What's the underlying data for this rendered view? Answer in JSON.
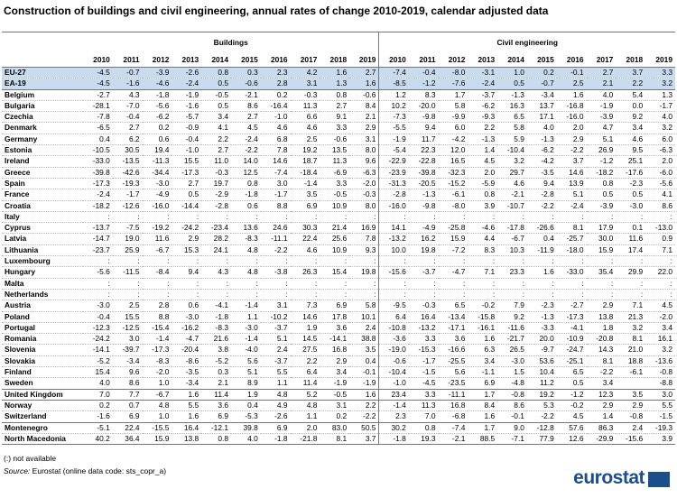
{
  "header": {
    "title": "Construction of buildings and civil engineering, annual rates of change 2010-2019, calendar adjusted data"
  },
  "table": {
    "groups_header": [
      "Buildings",
      "Civil engineering"
    ],
    "years": [
      "2010",
      "2011",
      "2012",
      "2013",
      "2014",
      "2015",
      "2016",
      "2017",
      "2018",
      "2019"
    ],
    "groups": [
      {
        "rows": [
          {
            "country": "EU-27",
            "values": [
              "-4.5",
              "-0.7",
              "-3.9",
              "-2.6",
              "0.8",
              "0.3",
              "2.3",
              "4.2",
              "1.6",
              "2.7",
              "-7.4",
              "-0.4",
              "-8.0",
              "-3.1",
              "1.0",
              "0.2",
              "-0.1",
              "2.7",
              "3.7",
              "3.3"
            ]
          },
          {
            "country": "EA-19",
            "values": [
              "-4.5",
              "-1.6",
              "-4.6",
              "-2.4",
              "0.5",
              "-0.6",
              "2.8",
              "3.1",
              "1.3",
              "1.6",
              "-8.5",
              "-1.2",
              "-7.6",
              "-2.4",
              "0.5",
              "-0.7",
              "2.5",
              "2.1",
              "2.2",
              "3.2"
            ]
          }
        ]
      },
      {
        "rows": [
          {
            "country": "Belgium",
            "values": [
              "-2.7",
              "4.3",
              "-1.8",
              "-1.9",
              "-0.5",
              "-2.1",
              "0.2",
              "-0.3",
              "0.8",
              "-0.6",
              "1.2",
              "8.3",
              "1.7",
              "-3.7",
              "-1.3",
              "-3.4",
              "1.6",
              "4.0",
              "5.4",
              "1.3"
            ]
          },
          {
            "country": "Bulgaria",
            "values": [
              "-28.1",
              "-7.0",
              "-5.6",
              "-1.6",
              "0.5",
              "8.6",
              "-16.4",
              "11.3",
              "2.7",
              "8.4",
              "10.2",
              "-20.0",
              "5.8",
              "-6.2",
              "16.3",
              "13.7",
              "-16.8",
              "-1.9",
              "0.0",
              "-1.7"
            ]
          },
          {
            "country": "Czechia",
            "values": [
              "-7.8",
              "-0.4",
              "-6.2",
              "-5.7",
              "3.4",
              "2.7",
              "-1.0",
              "6.6",
              "9.1",
              "2.1",
              "-7.3",
              "-9.8",
              "-9.9",
              "-9.3",
              "6.5",
              "17.1",
              "-16.0",
              "-3.9",
              "9.2",
              "4.0"
            ]
          },
          {
            "country": "Denmark",
            "values": [
              "-6.5",
              "2.7",
              "0.2",
              "-0.9",
              "4.1",
              "4.5",
              "4.6",
              "4.6",
              "3.3",
              "2.9",
              "-5.5",
              "9.4",
              "6.0",
              "2.2",
              "5.8",
              "4.0",
              "2.0",
              "4.7",
              "3.4",
              "3.2"
            ]
          },
          {
            "country": "Germany",
            "values": [
              "0.4",
              "6.2",
              "0.6",
              "-0.4",
              "2.2",
              "-2.4",
              "6.8",
              "2.5",
              "-0.6",
              "3.1",
              "-1.9",
              "11.7",
              "-4.2",
              "-1.3",
              "5.9",
              "-1.3",
              "2.9",
              "5.1",
              "4.6",
              "6.0"
            ]
          },
          {
            "country": "Estonia",
            "values": [
              "-10.5",
              "30.5",
              "19.4",
              "-1.0",
              "2.7",
              "-2.2",
              "7.8",
              "19.2",
              "13.5",
              "8.0",
              "-5.4",
              "22.3",
              "12.0",
              "1.4",
              "-10.4",
              "-6.2",
              "-2.2",
              "26.9",
              "9.5",
              "-6.3"
            ]
          },
          {
            "country": "Ireland",
            "values": [
              "-33.0",
              "-13.5",
              "-11.3",
              "15.5",
              "11.0",
              "14.0",
              "14.6",
              "18.7",
              "11.3",
              "9.6",
              "-22.9",
              "-22.8",
              "16.5",
              "4.5",
              "3.2",
              "-4.2",
              "3.7",
              "-1.2",
              "25.1",
              "2.0"
            ]
          },
          {
            "country": "Greece",
            "values": [
              "-39.8",
              "-42.6",
              "-34.4",
              "-17.3",
              "-0.3",
              "12.5",
              "-7.4",
              "-18.4",
              "-6.9",
              "-6.3",
              "-23.9",
              "-39.8",
              "-32.3",
              "2.0",
              "29.7",
              "-3.5",
              "14.6",
              "-18.2",
              "-17.6",
              "-6.0"
            ]
          },
          {
            "country": "Spain",
            "values": [
              "-17.3",
              "-19.3",
              "-3.0",
              "2.7",
              "19.7",
              "0.8",
              "3.0",
              "-1.4",
              "3.3",
              "-2.0",
              "-31.3",
              "-20.5",
              "-15.2",
              "-5.9",
              "4.6",
              "9.4",
              "13.9",
              "0.8",
              "-2.3",
              "-5.6"
            ]
          },
          {
            "country": "France",
            "values": [
              "-2.4",
              "-1.7",
              "-4.9",
              "0.5",
              "-2.9",
              "-1.8",
              "-1.7",
              "3.5",
              "-0.5",
              "-0.3",
              "-2.8",
              "-1.3",
              "-6.1",
              "0.8",
              "-2.1",
              "-2.8",
              "5.1",
              "0.5",
              "0.5",
              "4.1"
            ]
          },
          {
            "country": "Croatia",
            "values": [
              "-18.2",
              "-12.6",
              "-16.0",
              "-14.4",
              "-2.8",
              "0.6",
              "8.8",
              "6.9",
              "10.9",
              "8.0",
              "-16.0",
              "-9.8",
              "-8.0",
              "3.9",
              "-10.7",
              "-2.2",
              "-2.4",
              "-3.9",
              "-3.0",
              "8.6"
            ]
          },
          {
            "country": "Italy",
            "values": [
              ":",
              ":",
              ":",
              ":",
              ":",
              ":",
              ":",
              ":",
              ":",
              ":",
              ":",
              ":",
              ":",
              ":",
              ":",
              ":",
              ":",
              ":",
              ":",
              ":"
            ]
          },
          {
            "country": "Cyprus",
            "values": [
              "-13.7",
              "-7.5",
              "-19.2",
              "-24.2",
              "-23.4",
              "13.6",
              "24.6",
              "30.3",
              "21.4",
              "16.9",
              "14.1",
              "-4.9",
              "-25.8",
              "-4.6",
              "-17.8",
              "-26.6",
              "8.1",
              "17.9",
              "0.1",
              "-13.0"
            ]
          },
          {
            "country": "Latvia",
            "values": [
              "-14.7",
              "19.0",
              "11.6",
              "2.9",
              "28.2",
              "-8.3",
              "-11.1",
              "22.4",
              "25.6",
              "7.8",
              "-13.2",
              "16.2",
              "15.9",
              "4.4",
              "-6.7",
              "0.4",
              "-25.7",
              "30.0",
              "11.6",
              "0.9"
            ]
          },
          {
            "country": "Lithuania",
            "values": [
              "-23.7",
              "25.9",
              "-6.7",
              "15.3",
              "24.1",
              "4.8",
              "-2.2",
              "4.6",
              "10.9",
              "9.3",
              "10.0",
              "19.8",
              "-7.2",
              "8.3",
              "10.3",
              "-11.9",
              "-18.0",
              "15.9",
              "17.4",
              "7.1"
            ]
          },
          {
            "country": "Luxembourg",
            "values": [
              ":",
              ":",
              ":",
              ":",
              ":",
              ":",
              ":",
              ":",
              ":",
              ":",
              ":",
              ":",
              ":",
              ":",
              ":",
              ":",
              ":",
              ":",
              ":",
              ":"
            ]
          },
          {
            "country": "Hungary",
            "values": [
              "-5.6",
              "-11.5",
              "-8.4",
              "9.4",
              "4.3",
              "4.8",
              "-3.8",
              "26.3",
              "15.4",
              "19.8",
              "-15.6",
              "-3.7",
              "-4.7",
              "7.1",
              "23.3",
              "1.6",
              "-33.0",
              "35.4",
              "29.9",
              "22.0"
            ]
          },
          {
            "country": "Malta",
            "values": [
              ":",
              ":",
              ":",
              ":",
              ":",
              ":",
              ":",
              ":",
              ":",
              ":",
              ":",
              ":",
              ":",
              ":",
              ":",
              ":",
              ":",
              ":",
              ":",
              ":"
            ]
          },
          {
            "country": "Netherlands",
            "values": [
              ":",
              ":",
              ":",
              ":",
              ":",
              ":",
              ":",
              ":",
              ":",
              ":",
              ":",
              ":",
              ":",
              ":",
              ":",
              ":",
              ":",
              ":",
              ":",
              ":"
            ]
          },
          {
            "country": "Austria",
            "values": [
              "-3.0",
              "2.5",
              "2.8",
              "0.6",
              "-4.1",
              "-1.4",
              "3.1",
              "7.3",
              "6.9",
              "5.8",
              "-9.5",
              "-0.3",
              "6.5",
              "-0.2",
              "7.9",
              "-2.3",
              "-2.7",
              "2.9",
              "7.1",
              "4.5"
            ]
          },
          {
            "country": "Poland",
            "values": [
              "-0.4",
              "15.5",
              "8.8",
              "-3.0",
              "-1.8",
              "1.1",
              "-10.2",
              "14.6",
              "17.8",
              "10.1",
              "6.4",
              "16.4",
              "-13.4",
              "-15.8",
              "9.2",
              "-1.3",
              "-17.3",
              "13.8",
              "21.3",
              "-2.0"
            ]
          },
          {
            "country": "Portugal",
            "values": [
              "-12.3",
              "-12.5",
              "-15.4",
              "-16.2",
              "-8.3",
              "-3.0",
              "-3.7",
              "1.9",
              "3.6",
              "2.4",
              "-10.8",
              "-13.2",
              "-17.1",
              "-16.1",
              "-11.6",
              "-3.3",
              "-4.1",
              "1.8",
              "3.2",
              "3.4"
            ]
          },
          {
            "country": "Romania",
            "values": [
              "-24.2",
              "3.0",
              "-1.4",
              "-4.7",
              "21.6",
              "-1.4",
              "5.1",
              "14.5",
              "-14.1",
              "38.8",
              "-3.6",
              "3.3",
              "3.6",
              "1.6",
              "-21.7",
              "20.0",
              "-10.9",
              "-20.8",
              "8.1",
              "16.1"
            ]
          },
          {
            "country": "Slovenia",
            "values": [
              "-14.1",
              "-39.7",
              "-17.3",
              "-20.4",
              "3.8",
              "-4.0",
              "2.4",
              "27.5",
              "16.8",
              "3.5",
              "-19.0",
              "-15.3",
              "-16.6",
              "6.3",
              "26.5",
              "-9.7",
              "-24.7",
              "14.3",
              "21.0",
              "3.2"
            ]
          },
          {
            "country": "Slovakia",
            "values": [
              "-5.2",
              "-3.4",
              "-8.3",
              "-8.6",
              "-5.2",
              "5.6",
              "-3.7",
              "2.2",
              "2.9",
              "0.4",
              "-0.6",
              "-1.7",
              "-25.5",
              "3.4",
              "-3.0",
              "53.6",
              "-25.1",
              "8.1",
              "18.8",
              "-13.6"
            ]
          },
          {
            "country": "Finland",
            "values": [
              "15.4",
              "9.6",
              "-2.0",
              "-3.5",
              "0.3",
              "5.1",
              "5.5",
              "6.4",
              "3.4",
              "-0.1",
              "-10.4",
              "-1.5",
              "5.6",
              "-1.1",
              "1.5",
              "10.4",
              "6.5",
              "-2.2",
              "-6.1",
              "-0.8"
            ]
          },
          {
            "country": "Sweden",
            "values": [
              "4.0",
              "8.6",
              "1.0",
              "-3.4",
              "2.1",
              "8.9",
              "1.1",
              "11.4",
              "-1.9",
              "-1.9",
              "-1.0",
              "-4.5",
              "-23.5",
              "6.9",
              "-4.8",
              "11.2",
              "0.5",
              "3.4",
              null,
              "-8.8"
            ]
          }
        ]
      },
      {
        "rows": [
          {
            "country": "United Kingdom",
            "values": [
              "7.0",
              "7.7",
              "-6.7",
              "1.6",
              "11.4",
              "1.9",
              "4.8",
              "5.2",
              "-0.5",
              "1.6",
              "23.4",
              "3.3",
              "-11.1",
              "1.7",
              "-0.8",
              "19.2",
              "-1.2",
              "12.3",
              "3.5",
              "3.0"
            ]
          }
        ]
      },
      {
        "rows": [
          {
            "country": "Norway",
            "values": [
              "0.2",
              "0.7",
              "4.8",
              "5.5",
              "3.6",
              "0.4",
              "4.9",
              "4.8",
              "3.1",
              "2.2",
              "-1.4",
              "11.3",
              "16.8",
              "8.4",
              "8.6",
              "5.3",
              "-0.2",
              "2.9",
              "2.9",
              "5.5"
            ]
          },
          {
            "country": "Switzerland",
            "values": [
              "-1.6",
              "6.9",
              "1.0",
              "1.6",
              "6.9",
              "-5.3",
              "-2.6",
              "1.1",
              "0.2",
              "-2.2",
              "2.3",
              "7.0",
              "-6.8",
              "1.6",
              "-0.1",
              "-2.2",
              "4.5",
              "1.4",
              "-0.8",
              "-1.5"
            ]
          }
        ]
      },
      {
        "rows": [
          {
            "country": "Montenegro",
            "values": [
              "-5.1",
              "22.4",
              "-15.5",
              "16.4",
              "-12.1",
              "39.8",
              "6.9",
              "2.0",
              "83.0",
              "50.5",
              "30.2",
              "0.8",
              "-7.4",
              "1.7",
              "9.0",
              "-12.8",
              "57.6",
              "86.3",
              "2.4",
              "-19.3"
            ]
          },
          {
            "country": "North Macedonia",
            "values": [
              "40.2",
              "36.4",
              "15.9",
              "13.8",
              "0.8",
              "4.0",
              "-1.8",
              "-21.8",
              "8.1",
              "3.7",
              "-1.8",
              "19.3",
              "-2.1",
              "88.5",
              "-7.1",
              "77.9",
              "12.6",
              "-29.9",
              "-15.6",
              "3.9"
            ]
          }
        ]
      }
    ]
  },
  "footer": {
    "note": "(:) not available",
    "source_label": "Source:",
    "source": "Eurostat (online data code: sts_copr_a)",
    "logo": "eurostat"
  }
}
